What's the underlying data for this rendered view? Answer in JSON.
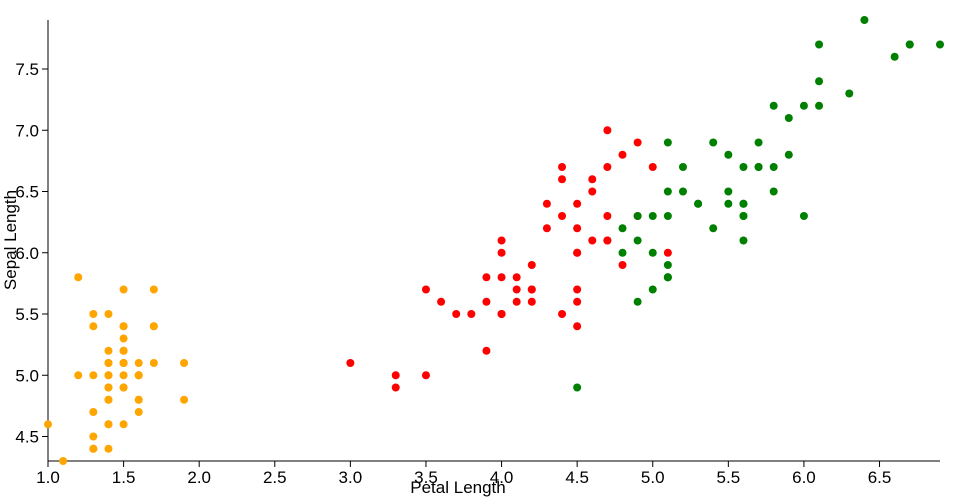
{
  "chart_data": {
    "type": "scatter",
    "x_label": "Petal Length",
    "y_label": "Sepal Length",
    "xlim": [
      1.0,
      6.9
    ],
    "ylim": [
      4.3,
      7.9
    ],
    "xticks": [
      {
        "value": 1,
        "label": "1.0"
      },
      {
        "value": 1.5,
        "label": "1.5"
      },
      {
        "value": 2,
        "label": "2.0"
      },
      {
        "value": 2.5,
        "label": "2.5"
      },
      {
        "value": 3,
        "label": "3.0"
      },
      {
        "value": 3.5,
        "label": "3.5"
      },
      {
        "value": 4,
        "label": "4.0"
      },
      {
        "value": 4.5,
        "label": "4.5"
      },
      {
        "value": 5,
        "label": "5.0"
      },
      {
        "value": 5.5,
        "label": "5.5"
      },
      {
        "value": 6,
        "label": "6.0"
      },
      {
        "value": 6.5,
        "label": "6.5"
      }
    ],
    "yticks": [
      {
        "value": 4.5,
        "label": "4.5"
      },
      {
        "value": 5,
        "label": "5.0"
      },
      {
        "value": 5.5,
        "label": "5.5"
      },
      {
        "value": 6,
        "label": "6.0"
      },
      {
        "value": 6.5,
        "label": "6.5"
      },
      {
        "value": 7,
        "label": "7.0"
      },
      {
        "value": 7.5,
        "label": "7.5"
      }
    ],
    "series": [
      {
        "color": "orange",
        "x": [
          1.4,
          1.4,
          1.3,
          1.5,
          1.4,
          1.7,
          1.4,
          1.5,
          1.4,
          1.5,
          1.5,
          1.6,
          1.4,
          1.1,
          1.2,
          1.5,
          1.3,
          1.4,
          1.7,
          1.5,
          1.7,
          1.5,
          1.0,
          1.7,
          1.9,
          1.6,
          1.6,
          1.5,
          1.4,
          1.6,
          1.6,
          1.5,
          1.5,
          1.4,
          1.5,
          1.2,
          1.3,
          1.4,
          1.3,
          1.5,
          1.3,
          1.3,
          1.3,
          1.6,
          1.9,
          1.4,
          1.6,
          1.4,
          1.5,
          1.4
        ],
        "values": [
          5.1,
          4.9,
          4.7,
          4.6,
          5.0,
          5.4,
          4.6,
          5.0,
          4.4,
          4.9,
          5.4,
          4.8,
          4.8,
          4.3,
          5.8,
          5.7,
          5.4,
          5.1,
          5.7,
          5.1,
          5.4,
          5.1,
          4.6,
          5.1,
          4.8,
          5.0,
          5.0,
          5.2,
          5.2,
          4.7,
          4.8,
          5.4,
          5.2,
          5.5,
          4.9,
          5.0,
          5.5,
          4.9,
          4.4,
          5.1,
          5.0,
          4.5,
          4.4,
          5.0,
          5.1,
          4.8,
          5.1,
          4.6,
          5.3,
          5.0
        ]
      },
      {
        "color": "red",
        "x": [
          4.7,
          4.5,
          4.9,
          4.0,
          4.6,
          4.5,
          4.7,
          3.3,
          4.6,
          3.9,
          3.5,
          4.2,
          4.0,
          4.7,
          3.6,
          4.4,
          4.5,
          4.1,
          4.5,
          3.9,
          4.8,
          4.0,
          4.9,
          4.7,
          4.3,
          4.4,
          4.8,
          5.0,
          4.5,
          3.5,
          3.8,
          3.7,
          3.9,
          5.1,
          4.5,
          4.5,
          4.7,
          4.4,
          4.1,
          4.0,
          4.4,
          4.6,
          4.0,
          3.3,
          4.2,
          4.2,
          4.2,
          4.3,
          3.0,
          4.1
        ],
        "values": [
          7.0,
          6.4,
          6.9,
          5.5,
          6.5,
          5.7,
          6.3,
          4.9,
          6.6,
          5.2,
          5.0,
          5.9,
          6.0,
          6.1,
          5.6,
          6.7,
          5.6,
          5.8,
          6.2,
          5.6,
          5.9,
          6.1,
          6.3,
          6.1,
          6.4,
          6.6,
          6.8,
          6.7,
          6.0,
          5.7,
          5.5,
          5.5,
          5.8,
          6.0,
          5.4,
          6.0,
          6.7,
          6.3,
          5.6,
          5.5,
          5.5,
          6.1,
          5.8,
          5.0,
          5.6,
          5.7,
          5.7,
          6.2,
          5.1,
          5.7
        ]
      },
      {
        "color": "green",
        "x": [
          6.0,
          5.1,
          5.9,
          5.6,
          5.8,
          6.6,
          4.5,
          6.3,
          5.8,
          6.1,
          5.1,
          5.3,
          5.5,
          5.0,
          5.1,
          5.3,
          5.5,
          6.7,
          6.9,
          5.0,
          5.7,
          4.9,
          6.7,
          4.9,
          5.7,
          6.0,
          4.8,
          4.9,
          5.6,
          5.8,
          6.1,
          6.4,
          5.6,
          5.1,
          5.6,
          6.1,
          5.6,
          5.5,
          4.8,
          5.4,
          5.6,
          5.1,
          5.1,
          5.9,
          5.7,
          5.2,
          5.0,
          5.2,
          5.4,
          5.1
        ],
        "values": [
          6.3,
          5.8,
          7.1,
          6.3,
          6.5,
          7.6,
          4.9,
          7.3,
          6.7,
          7.2,
          6.5,
          6.4,
          6.8,
          5.7,
          5.8,
          6.4,
          6.5,
          7.7,
          7.7,
          6.0,
          6.9,
          5.6,
          7.7,
          6.3,
          6.7,
          7.2,
          6.2,
          6.1,
          6.4,
          7.2,
          7.4,
          7.9,
          6.4,
          6.3,
          6.1,
          7.7,
          6.3,
          6.4,
          6.0,
          6.9,
          6.7,
          6.9,
          5.8,
          6.8,
          6.7,
          6.7,
          6.3,
          6.5,
          6.2,
          5.9
        ]
      }
    ]
  }
}
